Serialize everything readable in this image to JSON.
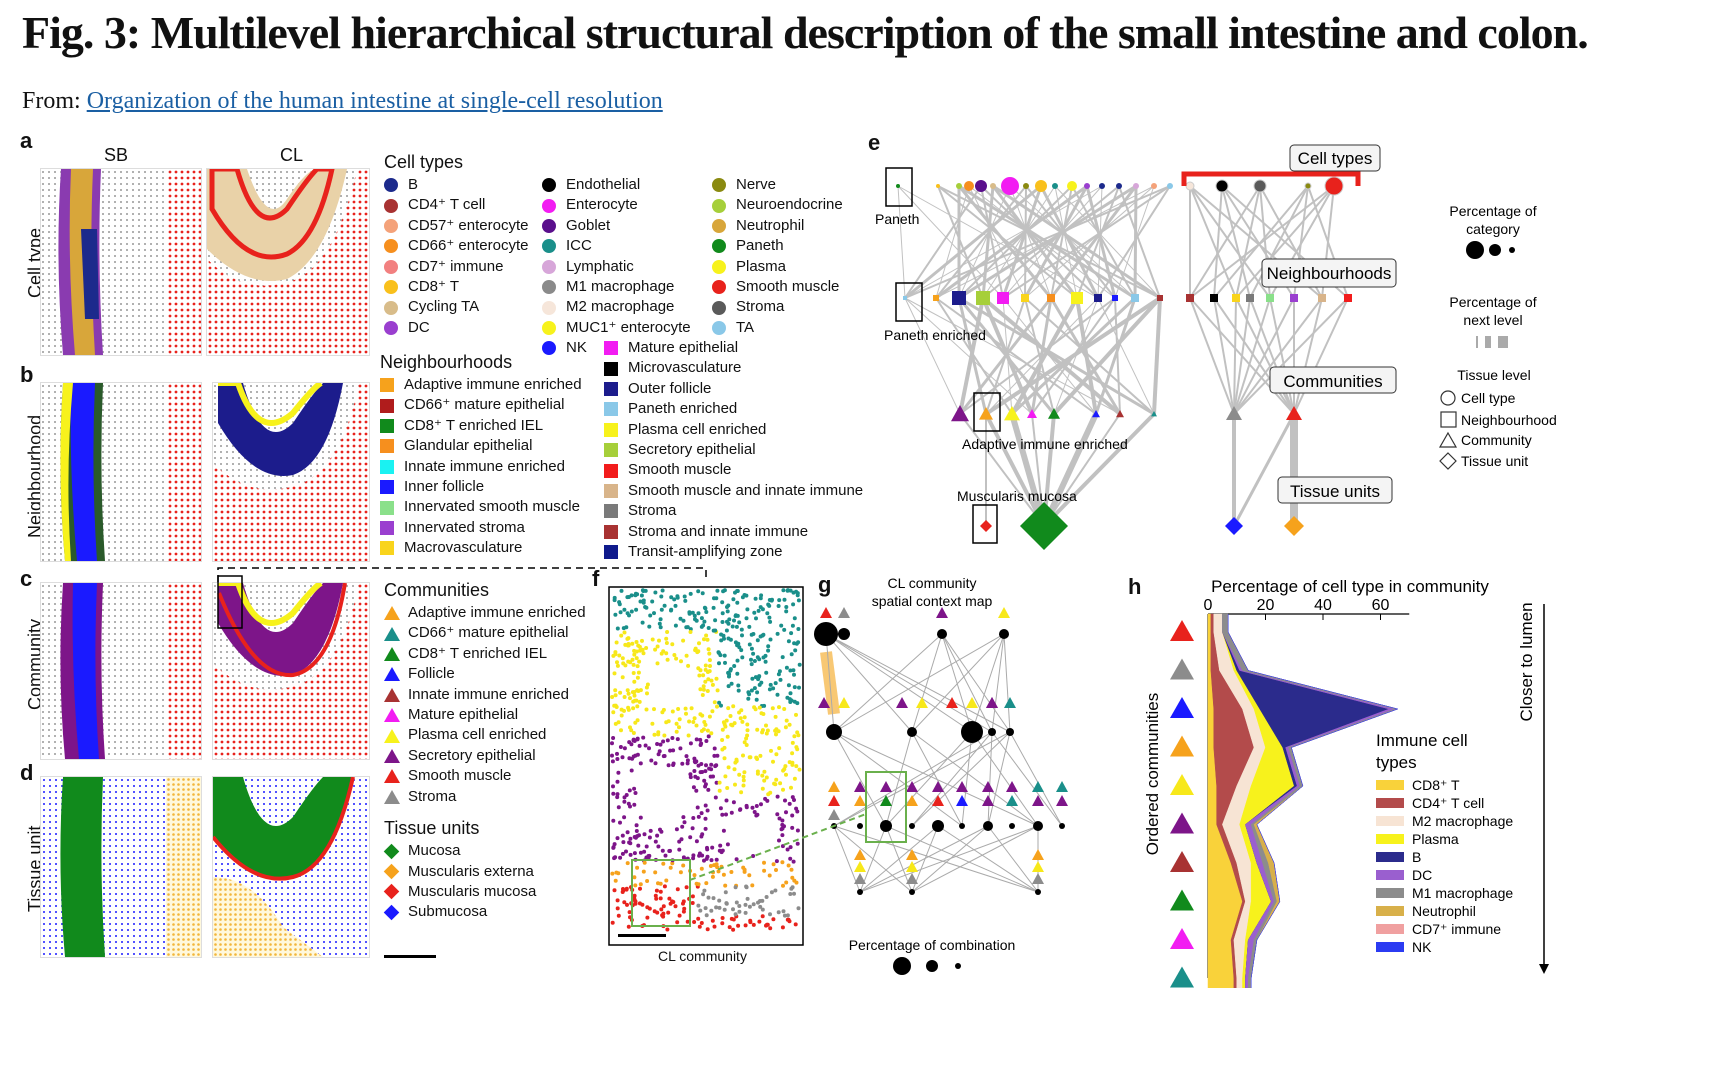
{
  "figure": {
    "title": "Fig. 3: Multilevel hierarchical structural description of the small intestine and colon.",
    "from_prefix": "From:",
    "from_link": "Organization of the human intestine at single-cell resolution"
  },
  "panels": {
    "a": "a",
    "b": "b",
    "c": "c",
    "d": "d",
    "e": "e",
    "f": "f",
    "g": "g",
    "h": "h"
  },
  "columns": {
    "sb": "SB",
    "cl": "CL"
  },
  "row_labels": {
    "cell_type": "Cell type",
    "neighbourhood": "Neighbourhood",
    "community": "Community",
    "tissue_unit": "Tissue unit"
  },
  "colors": {
    "red": "#e8221c",
    "blue": "#1a1aff",
    "green": "#118a1c",
    "yellow": "#f7e81a",
    "purple": "#7d1589",
    "orange": "#f6a21c",
    "teal": "#1a8f8a",
    "grey": "#8c8c8c",
    "black": "#000000"
  },
  "legend_celltypes": {
    "heading": "Cell types",
    "items": [
      {
        "label": "B",
        "color": "#1c2a8c"
      },
      {
        "label": "CD4⁺ T cell",
        "color": "#a83232"
      },
      {
        "label": "CD57⁺ enterocyte",
        "color": "#f4a27a"
      },
      {
        "label": "CD66⁺ enterocyte",
        "color": "#f68f1e"
      },
      {
        "label": "CD7⁺ immune",
        "color": "#f28080"
      },
      {
        "label": "CD8⁺ T",
        "color": "#f9c01c"
      },
      {
        "label": "Cycling TA",
        "color": "#d8bc8a"
      },
      {
        "label": "DC",
        "color": "#9a3fcf"
      },
      {
        "label": "Endothelial",
        "color": "#000000"
      },
      {
        "label": "Enterocyte",
        "color": "#f21cf2"
      },
      {
        "label": "Goblet",
        "color": "#5a0f8c"
      },
      {
        "label": "ICC",
        "color": "#1a8f8a"
      },
      {
        "label": "Lymphatic",
        "color": "#d7a6d9"
      },
      {
        "label": "M1 macrophage",
        "color": "#8a8a8a"
      },
      {
        "label": "M2 macrophage",
        "color": "#f6e6da"
      },
      {
        "label": "MUC1⁺ enterocyte",
        "color": "#f7f21c"
      },
      {
        "label": "NK",
        "color": "#1a1aff"
      },
      {
        "label": "Nerve",
        "color": "#8a8a10"
      },
      {
        "label": "Neuroendocrine",
        "color": "#a6cf3a"
      },
      {
        "label": "Neutrophil",
        "color": "#d8a63a"
      },
      {
        "label": "Paneth",
        "color": "#118a1c"
      },
      {
        "label": "Plasma",
        "color": "#f7f21c"
      },
      {
        "label": "Smooth muscle",
        "color": "#e8221c"
      },
      {
        "label": "Stroma",
        "color": "#5a5a5a"
      },
      {
        "label": "TA",
        "color": "#8ac8e8"
      }
    ]
  },
  "legend_neighbourhoods": {
    "heading": "Neighbourhoods",
    "items": [
      {
        "label": "Adaptive immune enriched",
        "color": "#f6a21c"
      },
      {
        "label": "CD66⁺ mature epithelial",
        "color": "#b01c1c"
      },
      {
        "label": "CD8⁺ T enriched IEL",
        "color": "#118a1c"
      },
      {
        "label": "Glandular epithelial",
        "color": "#f68f1e"
      },
      {
        "label": "Innate immune enriched",
        "color": "#1af2f2"
      },
      {
        "label": "Inner follicle",
        "color": "#1a1aff"
      },
      {
        "label": "Innervated smooth muscle",
        "color": "#8ae08a"
      },
      {
        "label": "Innervated stroma",
        "color": "#9a3fcf"
      },
      {
        "label": "Macrovasculature",
        "color": "#f9d41c"
      },
      {
        "label": "Mature epithelial",
        "color": "#f21cf2"
      },
      {
        "label": "Microvasculature",
        "color": "#000000"
      },
      {
        "label": "Outer follicle",
        "color": "#1c1c8c"
      },
      {
        "label": "Paneth enriched",
        "color": "#8ac8e8"
      },
      {
        "label": "Plasma cell enriched",
        "color": "#f7f21c"
      },
      {
        "label": "Secretory epithelial",
        "color": "#a6cf3a"
      },
      {
        "label": "Smooth muscle",
        "color": "#f21c1c"
      },
      {
        "label": "Smooth muscle and innate immune",
        "color": "#d8b48a"
      },
      {
        "label": "Stroma",
        "color": "#7a7a7a"
      },
      {
        "label": "Stroma and innate immune",
        "color": "#a83232"
      },
      {
        "label": "Transit-amplifying zone",
        "color": "#0f1a8c"
      }
    ]
  },
  "legend_communities": {
    "heading": "Communities",
    "items": [
      {
        "label": "Adaptive immune enriched",
        "color": "#f6a21c"
      },
      {
        "label": "CD66⁺ mature epithelial",
        "color": "#1a8f8a"
      },
      {
        "label": "CD8⁺ T enriched IEL",
        "color": "#118a1c"
      },
      {
        "label": "Follicle",
        "color": "#1a1aff"
      },
      {
        "label": "Innate immune enriched",
        "color": "#a83232"
      },
      {
        "label": "Mature epithelial",
        "color": "#f21cf2"
      },
      {
        "label": "Plasma cell enriched",
        "color": "#f7f21c"
      },
      {
        "label": "Secretory epithelial",
        "color": "#7d1589"
      },
      {
        "label": "Smooth muscle",
        "color": "#e8221c"
      },
      {
        "label": "Stroma",
        "color": "#8c8c8c"
      }
    ]
  },
  "legend_tissueunits": {
    "heading": "Tissue units",
    "items": [
      {
        "label": "Mucosa",
        "color": "#118a1c"
      },
      {
        "label": "Muscularis externa",
        "color": "#f6a21c"
      },
      {
        "label": "Muscularis mucosa",
        "color": "#e8221c"
      },
      {
        "label": "Submucosa",
        "color": "#1a1aff"
      }
    ]
  },
  "panel_e": {
    "boxes": {
      "cell_types": "Cell types",
      "neighbourhoods": "Neighbourhoods",
      "communities": "Communities",
      "tissue_units": "Tissue units"
    },
    "labels": {
      "paneth": "Paneth",
      "paneth_enriched": "Paneth enriched",
      "adaptive": "Adaptive immune enriched",
      "muscularis": "Muscularis mucosa"
    },
    "legend": {
      "pct_category": "Percentage of category",
      "pct_next": "Percentage of next level",
      "tissue_level": "Tissue level",
      "levels": [
        "Cell type",
        "Neighbourhood",
        "Community",
        "Tissue unit"
      ]
    }
  },
  "panel_f": {
    "caption": "CL community"
  },
  "panel_g": {
    "title": "CL community spatial context map",
    "footer": "Percentage of combination"
  },
  "panel_h": {
    "xlabel": "Percentage of cell type in community",
    "ylabel": "Ordered communities",
    "arrow_label": "Closer to lumen",
    "legend_title": "Immune cell types"
  },
  "chart_data": {
    "type": "area",
    "xlabel": "Percentage of cell type in community",
    "ylabel": "Ordered communities",
    "xticks": [
      0,
      20,
      40,
      60
    ],
    "xlim": [
      0,
      70
    ],
    "categories": [
      "Smooth muscle",
      "Stroma",
      "Follicle",
      "Adaptive immune enriched",
      "Plasma cell enriched",
      "Secretory epithelial",
      "Innate immune enriched",
      "CD8⁺ T enriched IEL",
      "Mature epithelial",
      "CD66⁺ mature epithelial"
    ],
    "category_colors": [
      "#e8221c",
      "#8c8c8c",
      "#1a1aff",
      "#f6a21c",
      "#f7e81a",
      "#7d1589",
      "#a83232",
      "#118a1c",
      "#f21cf2",
      "#1a8f8a"
    ],
    "series": [
      {
        "name": "CD8⁺ T",
        "color": "#f9d23a",
        "values": [
          1,
          1,
          2,
          2,
          3,
          3,
          8,
          12,
          8,
          9
        ]
      },
      {
        "name": "CD4⁺ T cell",
        "color": "#b34b4b",
        "values": [
          1,
          3,
          10,
          14,
          7,
          2,
          2,
          1,
          1,
          1
        ]
      },
      {
        "name": "M2 macrophage",
        "color": "#f7e4d4",
        "values": [
          3,
          5,
          4,
          4,
          5,
          6,
          5,
          2,
          4,
          2
        ]
      },
      {
        "name": "Plasma",
        "color": "#f7f21c",
        "values": [
          0,
          1,
          2,
          6,
          15,
          2,
          2,
          7,
          1,
          1
        ]
      },
      {
        "name": "B",
        "color": "#2b2b8c",
        "values": [
          0,
          1,
          45,
          1,
          1,
          0,
          0,
          0,
          0,
          0
        ]
      },
      {
        "name": "DC",
        "color": "#9a5fcf",
        "values": [
          0,
          1,
          2,
          1,
          1,
          2,
          2,
          1,
          2,
          1
        ]
      },
      {
        "name": "M1 macrophage",
        "color": "#8c8c8c",
        "values": [
          2,
          2,
          1,
          1,
          1,
          1,
          2,
          1,
          1,
          1
        ]
      },
      {
        "name": "Neutrophil",
        "color": "#d8b04a",
        "values": [
          0,
          0,
          0,
          0,
          0,
          1,
          2,
          1,
          0,
          0
        ]
      },
      {
        "name": "CD7⁺ immune",
        "color": "#f0a0a0",
        "values": [
          0,
          0,
          0,
          0,
          0,
          0,
          0,
          0,
          0,
          0
        ]
      },
      {
        "name": "NK",
        "color": "#2b3bf2",
        "values": [
          0,
          0,
          0,
          0,
          0,
          0,
          0,
          0,
          0,
          0
        ]
      }
    ]
  }
}
